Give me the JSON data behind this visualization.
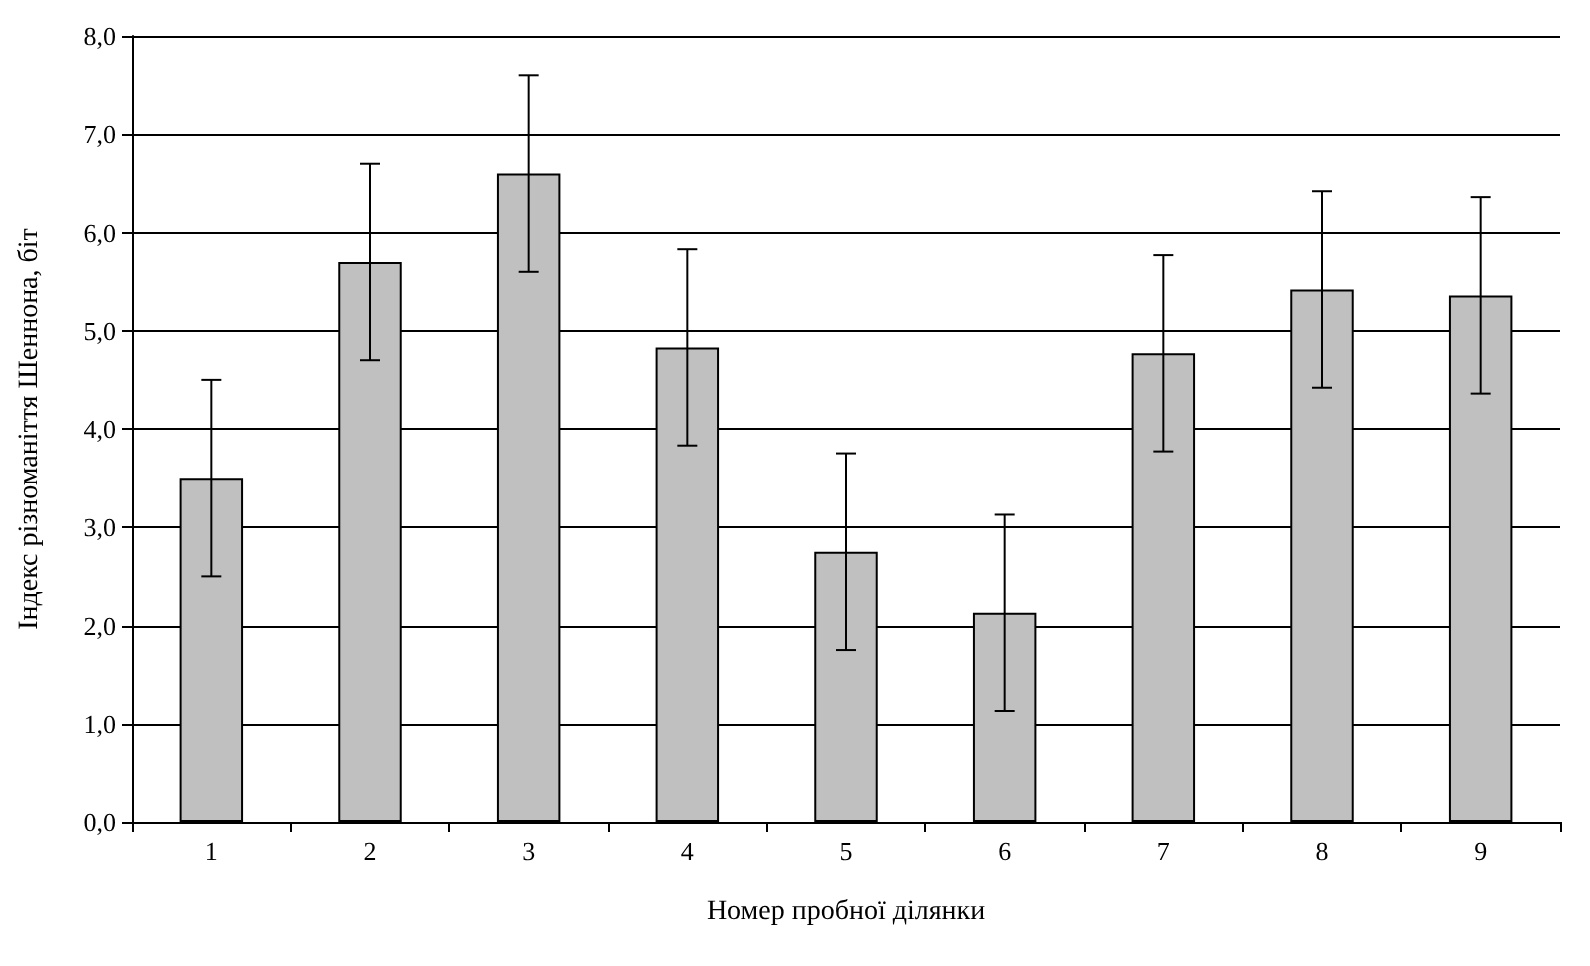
{
  "chart_data": {
    "type": "bar",
    "xlabel": "Номер пробної ділянки",
    "ylabel": "Індекс різноманіття Шеннона, біт",
    "categories": [
      "1",
      "2",
      "3",
      "4",
      "5",
      "6",
      "7",
      "8",
      "9"
    ],
    "values": [
      3.5,
      5.7,
      6.6,
      4.83,
      2.75,
      2.13,
      4.77,
      5.42,
      5.36
    ],
    "errors": [
      1.0,
      1.0,
      1.0,
      1.0,
      1.0,
      1.0,
      1.0,
      1.0,
      1.0
    ],
    "color": "#c0c0c0",
    "ylim": [
      0,
      8
    ],
    "yticks": [
      {
        "value": 0,
        "label": "0,0"
      },
      {
        "value": 1,
        "label": "1,0"
      },
      {
        "value": 2,
        "label": "2,0"
      },
      {
        "value": 3,
        "label": "3,0"
      },
      {
        "value": 4,
        "label": "4,0"
      },
      {
        "value": 5,
        "label": "5,0"
      },
      {
        "value": 6,
        "label": "6,0"
      },
      {
        "value": 7,
        "label": "7,0"
      },
      {
        "value": 8,
        "label": "8,0"
      }
    ],
    "grid": "y"
  }
}
